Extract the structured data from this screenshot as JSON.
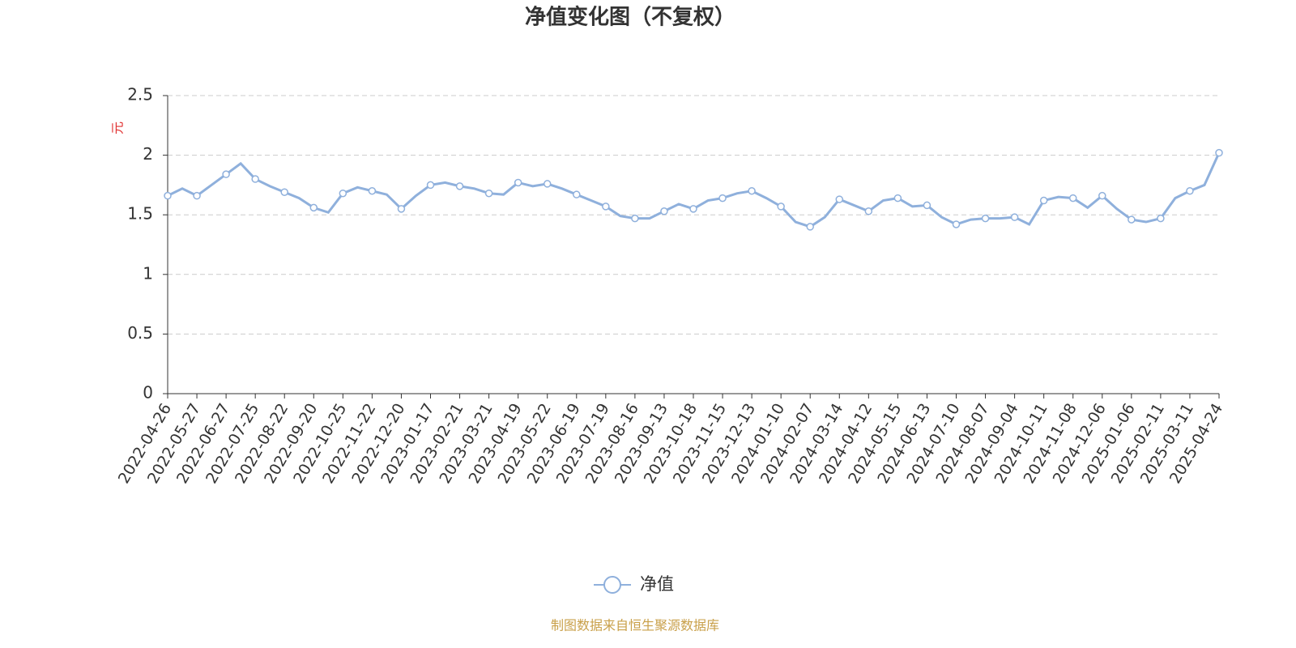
{
  "chart_data": {
    "type": "line",
    "title": "净值变化图（不复权）",
    "y_label": "元",
    "source": "制图数据来自恒生聚源数据库",
    "categories": [
      "2022-04-26",
      null,
      "2022-05-27",
      null,
      "2022-06-27",
      null,
      "2022-07-25",
      null,
      "2022-08-22",
      null,
      "2022-09-20",
      null,
      "2022-10-25",
      null,
      "2022-11-22",
      null,
      "2022-12-20",
      null,
      "2023-01-17",
      null,
      "2023-02-21",
      null,
      "2023-03-21",
      null,
      "2023-04-19",
      null,
      "2023-05-22",
      null,
      "2023-06-19",
      null,
      "2023-07-19",
      null,
      "2023-08-16",
      null,
      "2023-09-13",
      null,
      "2023-10-18",
      null,
      "2023-11-15",
      null,
      "2023-12-13",
      null,
      "2024-01-10",
      null,
      "2024-02-07",
      null,
      "2024-03-14",
      null,
      "2024-04-12",
      null,
      "2024-05-15",
      null,
      "2024-06-13",
      null,
      "2024-07-10",
      null,
      "2024-08-07",
      null,
      "2024-09-04",
      null,
      "2024-10-11",
      null,
      "2024-11-08",
      null,
      "2024-12-06",
      null,
      "2025-01-06",
      null,
      "2025-02-11",
      null,
      "2025-03-11",
      null,
      "2025-04-24"
    ],
    "series": [
      {
        "name": "净值",
        "color": "#8fb0dc",
        "values": [
          1.66,
          1.72,
          1.66,
          1.75,
          1.84,
          1.93,
          1.8,
          1.74,
          1.69,
          1.64,
          1.56,
          1.52,
          1.68,
          1.73,
          1.7,
          1.67,
          1.55,
          1.66,
          1.75,
          1.77,
          1.74,
          1.72,
          1.68,
          1.67,
          1.77,
          1.74,
          1.76,
          1.72,
          1.67,
          1.62,
          1.57,
          1.49,
          1.47,
          1.47,
          1.53,
          1.59,
          1.55,
          1.62,
          1.64,
          1.68,
          1.7,
          1.64,
          1.57,
          1.44,
          1.4,
          1.48,
          1.63,
          1.58,
          1.53,
          1.62,
          1.64,
          1.57,
          1.58,
          1.48,
          1.42,
          1.46,
          1.47,
          1.47,
          1.48,
          1.42,
          1.62,
          1.65,
          1.64,
          1.56,
          1.66,
          1.55,
          1.46,
          1.44,
          1.47,
          1.64,
          1.7,
          1.75,
          2.02
        ]
      }
    ],
    "ylim": [
      0,
      2.5
    ],
    "yticks": [
      0,
      0.5,
      1,
      1.5,
      2,
      2.5
    ],
    "grid": true
  }
}
